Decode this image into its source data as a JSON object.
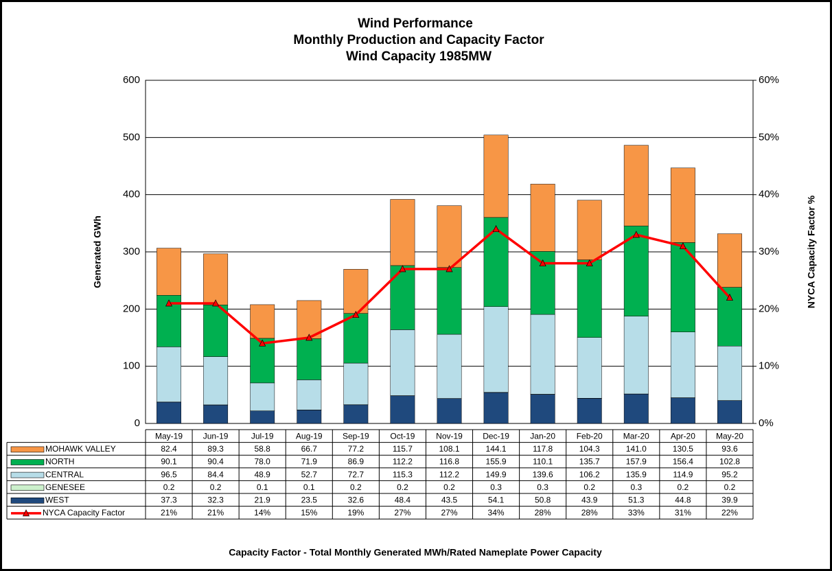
{
  "chart_data": {
    "type": "bar",
    "title": "Wind Performance",
    "subtitle": [
      "Monthly Production and Capacity Factor",
      "Wind Capacity 1985MW"
    ],
    "ylabel": "Generated GWh",
    "y2label": "NYCA Capacity Factor %",
    "footnote": "Capacity Factor  - Total Monthly Generated MWh/Rated Nameplate Power Capacity",
    "stacked": true,
    "categories": [
      "May-19",
      "Jun-19",
      "Jul-19",
      "Aug-19",
      "Sep-19",
      "Oct-19",
      "Nov-19",
      "Dec-19",
      "Jan-20",
      "Feb-20",
      "Mar-20",
      "Apr-20",
      "May-20"
    ],
    "series": [
      {
        "name": "MOHAWK VALLEY",
        "color": "#f79646",
        "values": [
          82.4,
          89.3,
          58.8,
          66.7,
          77.2,
          115.7,
          108.1,
          144.1,
          117.8,
          104.3,
          141.0,
          130.5,
          93.6
        ],
        "value_labels": [
          "82.4",
          "89.3",
          "58.8",
          "66.7",
          "77.2",
          "115.7",
          "108.1",
          "144.1",
          "117.8",
          "104.3",
          "141.0",
          "130.5",
          "93.6"
        ]
      },
      {
        "name": "NORTH",
        "color": "#00b050",
        "values": [
          90.1,
          90.4,
          78.0,
          71.9,
          86.9,
          112.2,
          116.8,
          155.9,
          110.1,
          135.7,
          157.9,
          156.4,
          102.8
        ],
        "value_labels": [
          "90.1",
          "90.4",
          "78.0",
          "71.9",
          "86.9",
          "112.2",
          "116.8",
          "155.9",
          "110.1",
          "135.7",
          "157.9",
          "156.4",
          "102.8"
        ]
      },
      {
        "name": "CENTRAL",
        "color": "#b7dde8",
        "values": [
          96.5,
          84.4,
          48.9,
          52.7,
          72.7,
          115.3,
          112.2,
          149.9,
          139.6,
          106.2,
          135.9,
          114.9,
          95.2
        ],
        "value_labels": [
          "96.5",
          "84.4",
          "48.9",
          "52.7",
          "72.7",
          "115.3",
          "112.2",
          "149.9",
          "139.6",
          "106.2",
          "135.9",
          "114.9",
          "95.2"
        ]
      },
      {
        "name": "GENESEE",
        "color": "#ccf0cc",
        "values": [
          0.2,
          0.2,
          0.1,
          0.1,
          0.2,
          0.2,
          0.2,
          0.3,
          0.3,
          0.2,
          0.3,
          0.2,
          0.2
        ],
        "value_labels": [
          "0.2",
          "0.2",
          "0.1",
          "0.1",
          "0.2",
          "0.2",
          "0.2",
          "0.3",
          "0.3",
          "0.2",
          "0.3",
          "0.2",
          "0.2"
        ]
      },
      {
        "name": "WEST",
        "color": "#1f497d",
        "values": [
          37.3,
          32.3,
          21.9,
          23.5,
          32.6,
          48.4,
          43.5,
          54.1,
          50.8,
          43.9,
          51.3,
          44.8,
          39.9
        ],
        "value_labels": [
          "37.3",
          "32.3",
          "21.9",
          "23.5",
          "32.6",
          "48.4",
          "43.5",
          "54.1",
          "50.8",
          "43.9",
          "51.3",
          "44.8",
          "39.9"
        ]
      },
      {
        "name": "NYCA Capacity Factor",
        "color": "#ff0000",
        "type": "line",
        "axis": "y2",
        "values": [
          21,
          21,
          14,
          15,
          19,
          27,
          27,
          34,
          28,
          28,
          33,
          31,
          22
        ],
        "value_labels": [
          "21%",
          "21%",
          "14%",
          "15%",
          "19%",
          "27%",
          "27%",
          "34%",
          "28%",
          "28%",
          "33%",
          "31%",
          "22%"
        ]
      }
    ],
    "ylim": [
      0,
      600
    ],
    "yticks": [
      0,
      100,
      200,
      300,
      400,
      500,
      600
    ],
    "y2lim": [
      0,
      60
    ],
    "y2ticks": [
      {
        "value": 0,
        "label": "0%"
      },
      {
        "value": 10,
        "label": "10%"
      },
      {
        "value": 20,
        "label": "20%"
      },
      {
        "value": 30,
        "label": "30%"
      },
      {
        "value": 40,
        "label": "40%"
      },
      {
        "value": 50,
        "label": "50%"
      },
      {
        "value": 60,
        "label": "60%"
      }
    ],
    "grid": true
  }
}
